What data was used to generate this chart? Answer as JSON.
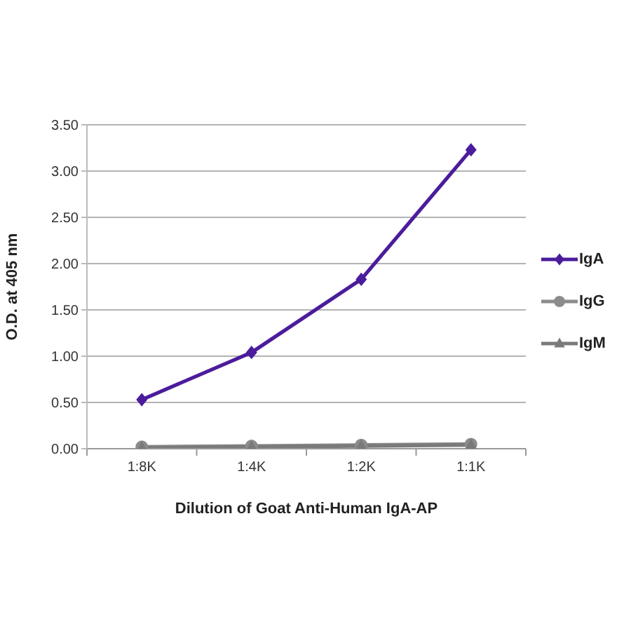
{
  "chart_data": {
    "type": "line",
    "xlabel": "Dilution of Goat Anti-Human IgA-AP",
    "ylabel": "O.D. at 405 nm",
    "categories": [
      "1:8K",
      "1:4K",
      "1:2K",
      "1:1K"
    ],
    "series": [
      {
        "name": "IgA",
        "color": "#4b1c9c",
        "marker": "diamond",
        "values": [
          0.53,
          1.04,
          1.83,
          3.23
        ]
      },
      {
        "name": "IgG",
        "color": "#8c8c8c",
        "marker": "circle",
        "values": [
          0.02,
          0.03,
          0.04,
          0.05
        ]
      },
      {
        "name": "IgM",
        "color": "#7a7a7a",
        "marker": "triangle",
        "values": [
          0.01,
          0.02,
          0.03,
          0.04
        ]
      }
    ],
    "ylim": [
      0,
      3.5
    ],
    "yticks": [
      {
        "value": 0,
        "label": "0.00"
      },
      {
        "value": 0.5,
        "label": "0.50"
      },
      {
        "value": 1,
        "label": "1.00"
      },
      {
        "value": 1.5,
        "label": "1.50"
      },
      {
        "value": 2,
        "label": "2.00"
      },
      {
        "value": 2.5,
        "label": "2.50"
      },
      {
        "value": 3,
        "label": "3.00"
      },
      {
        "value": 3.5,
        "label": "3.50"
      }
    ],
    "grid": "y",
    "legend": "right"
  }
}
